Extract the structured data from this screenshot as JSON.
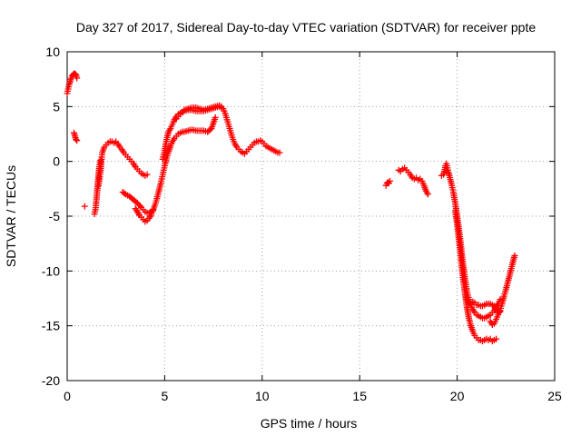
{
  "chart_data": {
    "type": "scatter",
    "title": "Day 327 of 2017, Sidereal Day-to-day VTEC variation (SDTVAR) for receiver ppte",
    "xlabel": "GPS time / hours",
    "ylabel": "SDTVAR / TECUs",
    "xlim": [
      0,
      25
    ],
    "ylim": [
      -20,
      10
    ],
    "xticks": [
      "0",
      "5",
      "10",
      "15",
      "20",
      "25"
    ],
    "yticks": [
      "-20",
      "-15",
      "-10",
      "-5",
      "0",
      "5",
      "10"
    ],
    "grid": true,
    "marker": "+",
    "color": "#ff0000",
    "series": [
      {
        "segments": [
          [
            [
              0.0,
              6.2
            ],
            [
              0.05,
              6.6
            ],
            [
              0.1,
              7.0
            ],
            [
              0.15,
              7.3
            ],
            [
              0.2,
              7.6
            ],
            [
              0.25,
              7.8
            ],
            [
              0.3,
              7.9
            ],
            [
              0.35,
              8.0
            ],
            [
              0.4,
              8.0
            ],
            [
              0.45,
              7.9
            ],
            [
              0.5,
              7.6
            ]
          ],
          [
            [
              0.35,
              2.6
            ],
            [
              0.4,
              2.3
            ],
            [
              0.45,
              2.0
            ],
            [
              0.5,
              1.9
            ]
          ],
          [
            [
              0.9,
              -4.1
            ]
          ],
          [
            [
              1.4,
              -4.8
            ],
            [
              1.45,
              -4.4
            ],
            [
              1.5,
              -3.5
            ],
            [
              1.55,
              -2.5
            ],
            [
              1.6,
              -1.5
            ],
            [
              1.65,
              -0.5
            ],
            [
              1.7,
              0.1
            ]
          ],
          [
            [
              1.6,
              -2.2
            ],
            [
              1.65,
              -1.8
            ],
            [
              1.7,
              -1.0
            ],
            [
              1.75,
              0.0
            ],
            [
              1.8,
              0.8
            ],
            [
              1.9,
              1.3
            ],
            [
              2.0,
              1.5
            ],
            [
              2.1,
              1.7
            ],
            [
              2.2,
              1.8
            ],
            [
              2.3,
              1.8
            ],
            [
              2.4,
              1.7
            ],
            [
              2.5,
              1.8
            ],
            [
              2.6,
              1.6
            ],
            [
              2.7,
              1.3
            ],
            [
              2.8,
              1.1
            ],
            [
              2.9,
              0.8
            ],
            [
              3.0,
              0.6
            ],
            [
              3.1,
              0.4
            ],
            [
              3.2,
              0.2
            ],
            [
              3.3,
              0.0
            ],
            [
              3.4,
              -0.2
            ],
            [
              3.5,
              -0.5
            ],
            [
              3.6,
              -0.7
            ],
            [
              3.7,
              -0.9
            ],
            [
              3.8,
              -1.1
            ],
            [
              3.9,
              -1.2
            ],
            [
              4.0,
              -1.3
            ],
            [
              4.1,
              -1.2
            ]
          ],
          [
            [
              2.85,
              -2.8
            ],
            [
              3.0,
              -3.0
            ],
            [
              3.2,
              -3.2
            ],
            [
              3.4,
              -3.5
            ],
            [
              3.6,
              -3.8
            ],
            [
              3.8,
              -4.2
            ],
            [
              3.9,
              -4.4
            ],
            [
              4.0,
              -4.6
            ],
            [
              4.1,
              -4.7
            ],
            [
              4.2,
              -4.7
            ],
            [
              4.3,
              -4.6
            ],
            [
              4.4,
              -4.4
            ]
          ],
          [
            [
              3.5,
              -4.3
            ],
            [
              3.6,
              -4.6
            ],
            [
              3.7,
              -4.9
            ],
            [
              3.8,
              -5.1
            ],
            [
              3.9,
              -5.3
            ],
            [
              4.0,
              -5.5
            ],
            [
              4.1,
              -5.4
            ],
            [
              4.2,
              -5.2
            ],
            [
              4.3,
              -4.9
            ],
            [
              4.4,
              -4.5
            ],
            [
              4.5,
              -4.0
            ],
            [
              4.6,
              -3.4
            ],
            [
              4.7,
              -2.7
            ],
            [
              4.8,
              -2.0
            ],
            [
              4.9,
              -1.2
            ],
            [
              5.0,
              -0.4
            ],
            [
              5.1,
              0.3
            ],
            [
              5.2,
              0.9
            ],
            [
              5.3,
              1.4
            ],
            [
              5.4,
              1.8
            ],
            [
              5.5,
              2.1
            ],
            [
              5.6,
              2.3
            ],
            [
              5.7,
              2.5
            ],
            [
              5.8,
              2.6
            ],
            [
              5.9,
              2.7
            ],
            [
              6.0,
              2.7
            ],
            [
              6.2,
              2.8
            ],
            [
              6.4,
              2.9
            ],
            [
              6.6,
              2.8
            ],
            [
              6.8,
              2.8
            ],
            [
              7.0,
              2.8
            ],
            [
              7.2,
              2.7
            ],
            [
              7.4,
              3.0
            ],
            [
              7.5,
              3.5
            ],
            [
              7.6,
              4.0
            ]
          ],
          [
            [
              4.9,
              0.2
            ],
            [
              5.0,
              1.0
            ],
            [
              5.1,
              2.0
            ],
            [
              5.2,
              2.7
            ],
            [
              5.3,
              3.0
            ],
            [
              5.4,
              3.4
            ],
            [
              5.5,
              3.8
            ],
            [
              5.6,
              4.1
            ],
            [
              5.7,
              4.3
            ],
            [
              5.8,
              4.4
            ],
            [
              5.9,
              4.5
            ],
            [
              6.0,
              4.6
            ],
            [
              6.2,
              4.7
            ],
            [
              6.4,
              4.7
            ],
            [
              6.6,
              4.6
            ],
            [
              6.8,
              4.6
            ],
            [
              7.0,
              4.6
            ],
            [
              7.2,
              4.7
            ],
            [
              7.4,
              4.8
            ],
            [
              7.6,
              4.9
            ],
            [
              7.8,
              5.0
            ],
            [
              8.0,
              4.8
            ],
            [
              8.1,
              4.4
            ],
            [
              8.2,
              3.8
            ],
            [
              8.3,
              3.2
            ],
            [
              8.4,
              2.6
            ],
            [
              8.5,
              2.0
            ],
            [
              8.6,
              1.6
            ],
            [
              8.7,
              1.3
            ],
            [
              8.8,
              1.1
            ],
            [
              8.9,
              0.9
            ],
            [
              9.0,
              0.8
            ],
            [
              9.1,
              0.7
            ],
            [
              9.2,
              0.9
            ],
            [
              9.3,
              1.1
            ],
            [
              9.4,
              1.3
            ],
            [
              9.5,
              1.5
            ],
            [
              9.6,
              1.7
            ],
            [
              9.7,
              1.8
            ],
            [
              9.8,
              1.8
            ],
            [
              9.9,
              1.9
            ],
            [
              10.0,
              1.8
            ],
            [
              10.1,
              1.6
            ],
            [
              10.2,
              1.4
            ],
            [
              10.3,
              1.3
            ],
            [
              10.4,
              1.2
            ],
            [
              10.5,
              1.1
            ],
            [
              10.6,
              1.0
            ],
            [
              10.7,
              0.9
            ],
            [
              10.8,
              0.8
            ],
            [
              10.9,
              0.8
            ]
          ],
          [
            [
              5.6,
              3.9
            ],
            [
              5.7,
              4.1
            ],
            [
              5.8,
              4.3
            ],
            [
              5.9,
              4.5
            ],
            [
              6.0,
              4.7
            ],
            [
              6.2,
              4.8
            ],
            [
              6.4,
              4.9
            ],
            [
              6.6,
              4.9
            ],
            [
              6.8,
              4.8
            ],
            [
              7.0,
              4.7
            ],
            [
              7.2,
              4.8
            ],
            [
              7.4,
              4.9
            ],
            [
              7.6,
              5.0
            ],
            [
              7.8,
              5.1
            ],
            [
              7.9,
              5.0
            ]
          ],
          [
            [
              16.35,
              -2.2
            ],
            [
              16.4,
              -2.0
            ],
            [
              16.45,
              -1.9
            ],
            [
              16.5,
              -2.0
            ],
            [
              16.55,
              -1.8
            ]
          ],
          [
            [
              17.0,
              -0.8
            ],
            [
              17.1,
              -0.9
            ],
            [
              17.2,
              -0.7
            ],
            [
              17.3,
              -0.6
            ],
            [
              17.4,
              -0.8
            ],
            [
              17.5,
              -1.0
            ],
            [
              17.6,
              -1.2
            ],
            [
              17.7,
              -1.5
            ],
            [
              17.8,
              -1.6
            ],
            [
              17.9,
              -1.5
            ],
            [
              18.0,
              -1.7
            ],
            [
              18.1,
              -1.6
            ],
            [
              18.2,
              -1.8
            ],
            [
              18.3,
              -2.2
            ],
            [
              18.4,
              -2.7
            ],
            [
              18.5,
              -3.0
            ]
          ],
          [
            [
              19.2,
              -1.3
            ],
            [
              19.3,
              -1.2
            ],
            [
              19.35,
              -0.9
            ],
            [
              19.4,
              -0.4
            ],
            [
              19.45,
              -0.2
            ],
            [
              19.5,
              -0.6
            ],
            [
              19.55,
              -1.0
            ],
            [
              19.6,
              -1.3
            ],
            [
              19.7,
              -2.0
            ],
            [
              19.8,
              -2.8
            ],
            [
              19.9,
              -3.8
            ],
            [
              20.0,
              -5.0
            ],
            [
              20.1,
              -6.3
            ],
            [
              20.2,
              -7.8
            ],
            [
              20.3,
              -9.3
            ],
            [
              20.4,
              -10.7
            ],
            [
              20.5,
              -11.8
            ],
            [
              20.6,
              -12.6
            ],
            [
              20.7,
              -13.1
            ],
            [
              20.8,
              -13.5
            ],
            [
              20.9,
              -13.8
            ],
            [
              21.0,
              -14.0
            ],
            [
              21.1,
              -14.1
            ],
            [
              21.2,
              -14.2
            ],
            [
              21.3,
              -14.3
            ],
            [
              21.4,
              -14.3
            ],
            [
              21.5,
              -14.2
            ],
            [
              21.6,
              -14.1
            ],
            [
              21.7,
              -14.0
            ],
            [
              21.8,
              -13.8
            ],
            [
              21.9,
              -13.6
            ],
            [
              22.0,
              -13.3
            ],
            [
              22.1,
              -13.0
            ],
            [
              22.2,
              -12.6
            ]
          ],
          [
            [
              19.9,
              -4.5
            ],
            [
              20.0,
              -5.8
            ],
            [
              20.1,
              -7.3
            ],
            [
              20.2,
              -9.0
            ],
            [
              20.3,
              -10.6
            ],
            [
              20.4,
              -12.0
            ],
            [
              20.5,
              -13.3
            ],
            [
              20.6,
              -14.3
            ],
            [
              20.7,
              -15.0
            ],
            [
              20.8,
              -15.5
            ],
            [
              20.9,
              -15.9
            ],
            [
              21.0,
              -16.1
            ],
            [
              21.1,
              -16.3
            ],
            [
              21.2,
              -16.3
            ],
            [
              21.3,
              -16.4
            ],
            [
              21.4,
              -16.3
            ],
            [
              21.5,
              -16.2
            ],
            [
              21.6,
              -16.3
            ],
            [
              21.7,
              -16.2
            ],
            [
              21.8,
              -16.4
            ],
            [
              21.9,
              -16.3
            ],
            [
              22.0,
              -16.2
            ]
          ],
          [
            [
              20.4,
              -11.8
            ],
            [
              20.5,
              -12.6
            ],
            [
              20.6,
              -13.0
            ],
            [
              20.7,
              -13.0
            ],
            [
              20.8,
              -12.8
            ],
            [
              20.9,
              -12.9
            ],
            [
              21.0,
              -13.1
            ],
            [
              21.1,
              -13.1
            ],
            [
              21.2,
              -13.2
            ],
            [
              21.3,
              -13.2
            ],
            [
              21.4,
              -13.1
            ],
            [
              21.5,
              -13.0
            ],
            [
              21.6,
              -13.0
            ],
            [
              21.7,
              -13.0
            ],
            [
              21.8,
              -13.1
            ],
            [
              21.9,
              -13.2
            ],
            [
              22.0,
              -13.5
            ],
            [
              22.1,
              -13.8
            ],
            [
              22.2,
              -13.7
            ]
          ],
          [
            [
              21.7,
              -14.6
            ],
            [
              21.8,
              -14.9
            ],
            [
              21.9,
              -14.8
            ],
            [
              22.0,
              -14.4
            ],
            [
              22.1,
              -14.0
            ],
            [
              22.2,
              -13.6
            ],
            [
              22.3,
              -13.0
            ],
            [
              22.4,
              -12.3
            ],
            [
              22.5,
              -11.7
            ],
            [
              22.6,
              -11.0
            ],
            [
              22.7,
              -10.3
            ],
            [
              22.8,
              -9.6
            ],
            [
              22.9,
              -8.9
            ],
            [
              22.95,
              -8.6
            ]
          ]
        ]
      }
    ]
  }
}
